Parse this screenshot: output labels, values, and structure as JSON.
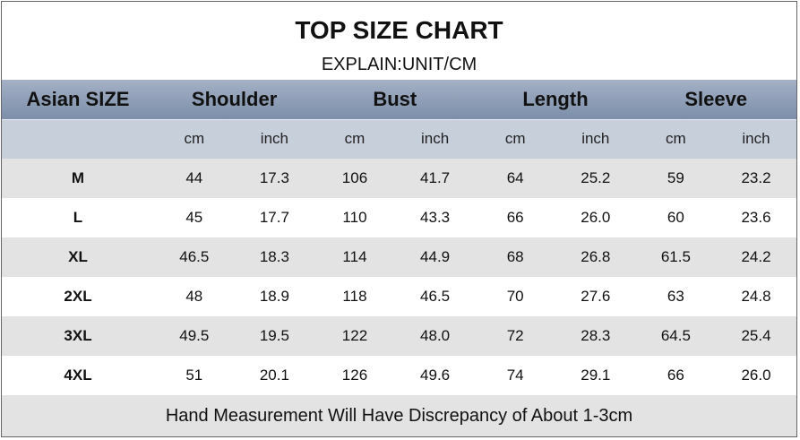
{
  "header": {
    "title": "TOP SIZE CHART",
    "subtitle": "EXPLAIN:UNIT/CM"
  },
  "table": {
    "corner": "Asian SIZE",
    "groups": [
      "Shoulder",
      "Bust",
      "Length",
      "Sleeve"
    ],
    "units": [
      "cm",
      "inch",
      "cm",
      "inch",
      "cm",
      "inch",
      "cm",
      "inch"
    ],
    "rows": [
      [
        "M",
        "44",
        "17.3",
        "106",
        "41.7",
        "64",
        "25.2",
        "59",
        "23.2"
      ],
      [
        "L",
        "45",
        "17.7",
        "110",
        "43.3",
        "66",
        "26.0",
        "60",
        "23.6"
      ],
      [
        "XL",
        "46.5",
        "18.3",
        "114",
        "44.9",
        "68",
        "26.8",
        "61.5",
        "24.2"
      ],
      [
        "2XL",
        "48",
        "18.9",
        "118",
        "46.5",
        "70",
        "27.6",
        "63",
        "24.8"
      ],
      [
        "3XL",
        "49.5",
        "19.5",
        "122",
        "48.0",
        "72",
        "28.3",
        "64.5",
        "25.4"
      ],
      [
        "4XL",
        "51",
        "20.1",
        "126",
        "49.6",
        "74",
        "29.1",
        "66",
        "26.0"
      ]
    ]
  },
  "footer": "Hand Measurement Will Have Discrepancy of About 1-3cm"
}
